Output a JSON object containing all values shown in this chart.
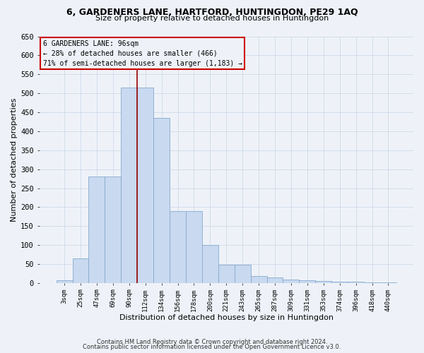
{
  "title1": "6, GARDENERS LANE, HARTFORD, HUNTINGDON, PE29 1AQ",
  "title2": "Size of property relative to detached houses in Huntingdon",
  "xlabel": "Distribution of detached houses by size in Huntingdon",
  "ylabel": "Number of detached properties",
  "categories": [
    "3sqm",
    "25sqm",
    "47sqm",
    "69sqm",
    "90sqm",
    "112sqm",
    "134sqm",
    "156sqm",
    "178sqm",
    "200sqm",
    "221sqm",
    "243sqm",
    "265sqm",
    "287sqm",
    "309sqm",
    "331sqm",
    "353sqm",
    "374sqm",
    "396sqm",
    "418sqm",
    "440sqm"
  ],
  "values": [
    8,
    65,
    280,
    280,
    515,
    515,
    435,
    190,
    190,
    100,
    48,
    48,
    18,
    15,
    10,
    8,
    5,
    3,
    3,
    2,
    2
  ],
  "bar_color": "#c8d9f0",
  "bar_edge_color": "#88aacc",
  "vline_x": 4.5,
  "vline_color": "#990000",
  "annotation_text": "6 GARDENERS LANE: 96sqm\n← 28% of detached houses are smaller (466)\n71% of semi-detached houses are larger (1,183) →",
  "annotation_box_color": "#cc0000",
  "ylim": [
    0,
    650
  ],
  "yticks": [
    0,
    50,
    100,
    150,
    200,
    250,
    300,
    350,
    400,
    450,
    500,
    550,
    600,
    650
  ],
  "bg_color": "#eef2f8",
  "grid_color": "#c8d4e8",
  "footnote1": "Contains HM Land Registry data © Crown copyright and database right 2024.",
  "footnote2": "Contains public sector information licensed under the Open Government Licence v3.0."
}
